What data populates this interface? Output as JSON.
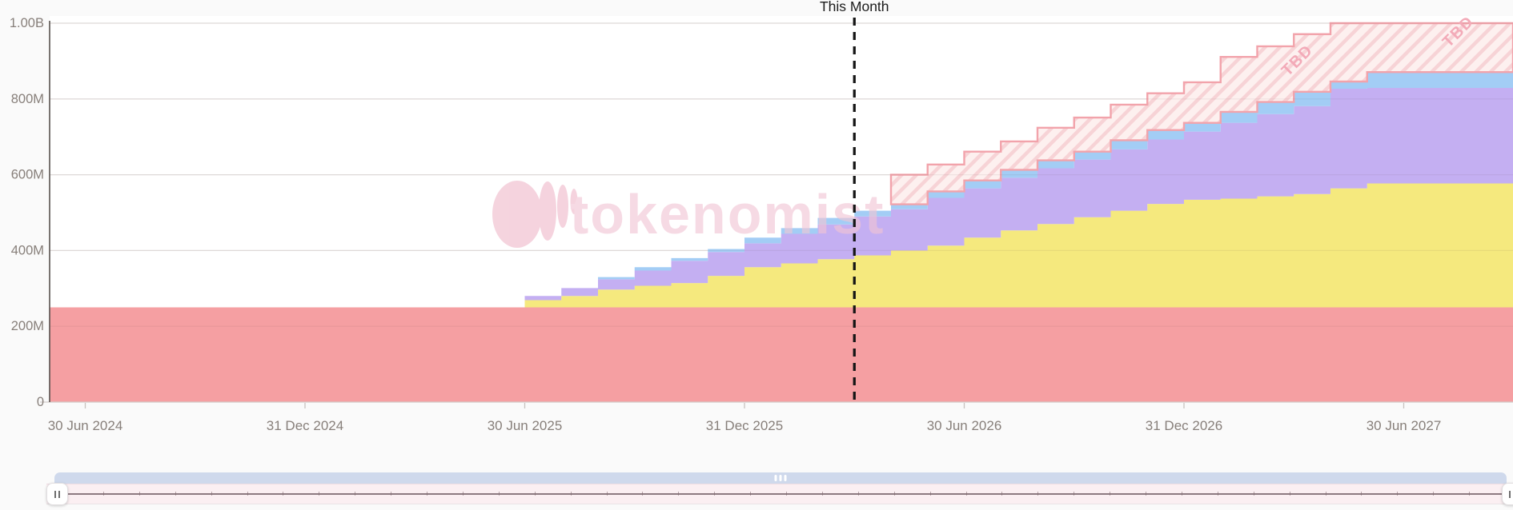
{
  "page": {
    "background": "#fafafa",
    "plot_background": "#ffffff"
  },
  "watermark": {
    "brand": "tokenomist",
    "color": "#f2c5d4"
  },
  "navigator": {
    "thumb_color": "#cfd9ec",
    "track_color": "#fbeff2",
    "baseline_color": "#8d7a81"
  },
  "chart_data": {
    "type": "area",
    "stacked": true,
    "step_interpolation": true,
    "title": "",
    "xlabel": "",
    "ylabel": "",
    "ylim": [
      0,
      1000
    ],
    "value_unit": "millions of tokens",
    "grid": true,
    "legend": false,
    "y_ticks": [
      {
        "value": 0,
        "label": "0"
      },
      {
        "value": 200,
        "label": "200M"
      },
      {
        "value": 400,
        "label": "400M"
      },
      {
        "value": 600,
        "label": "600M"
      },
      {
        "value": 800,
        "label": "800M"
      },
      {
        "value": 1000,
        "label": "1.00B"
      }
    ],
    "x_ticks": [
      {
        "boundary_month_index": 1,
        "label": "30 Jun 2024"
      },
      {
        "boundary_month_index": 7,
        "label": "31 Dec 2024"
      },
      {
        "boundary_month_index": 13,
        "label": "30 Jun 2025"
      },
      {
        "boundary_month_index": 19,
        "label": "31 Dec 2025"
      },
      {
        "boundary_month_index": 25,
        "label": "30 Jun 2026"
      },
      {
        "boundary_month_index": 31,
        "label": "31 Dec 2026"
      },
      {
        "boundary_month_index": 37,
        "label": "30 Jun 2027"
      }
    ],
    "months": [
      "Jun 2024",
      "Jul 2024",
      "Aug 2024",
      "Sep 2024",
      "Oct 2024",
      "Nov 2024",
      "Dec 2024",
      "Jan 2025",
      "Feb 2025",
      "Mar 2025",
      "Apr 2025",
      "May 2025",
      "Jun 2025",
      "Jul 2025",
      "Aug 2025",
      "Sep 2025",
      "Oct 2025",
      "Nov 2025",
      "Dec 2025",
      "Jan 2026",
      "Feb 2026",
      "Mar 2026",
      "Apr 2026",
      "May 2026",
      "Jun 2026",
      "Jul 2026",
      "Aug 2026",
      "Sep 2026",
      "Oct 2026",
      "Nov 2026",
      "Dec 2026",
      "Jan 2027",
      "Feb 2027",
      "Mar 2027",
      "Apr 2027",
      "May 2027",
      "Jun 2027",
      "Jul 2027",
      "Aug 2027",
      "Sep 2027"
    ],
    "series": [
      {
        "name": "red",
        "color": "#f59fa2",
        "values": [
          250,
          250,
          250,
          250,
          250,
          250,
          250,
          250,
          250,
          250,
          250,
          250,
          250,
          250,
          250,
          250,
          250,
          250,
          250,
          250,
          250,
          250,
          250,
          250,
          250,
          250,
          250,
          250,
          250,
          250,
          250,
          250,
          250,
          250,
          250,
          250,
          250,
          250,
          250,
          250
        ]
      },
      {
        "name": "yellow",
        "color": "#f5e97e",
        "values": [
          0,
          0,
          0,
          0,
          0,
          0,
          0,
          0,
          0,
          0,
          0,
          0,
          0,
          19,
          30,
          47,
          57,
          64,
          83,
          106,
          116,
          127,
          137,
          150,
          163,
          184,
          203,
          220,
          238,
          255,
          273,
          284,
          287,
          293,
          299,
          314,
          327,
          327,
          327,
          327
        ]
      },
      {
        "name": "purple",
        "color": "#c4aff2",
        "values": [
          0,
          0,
          0,
          0,
          0,
          0,
          0,
          0,
          0,
          0,
          0,
          0,
          0,
          11,
          21,
          27,
          40,
          59,
          63,
          63,
          78,
          92,
          103,
          109,
          126,
          130,
          139,
          147,
          152,
          162,
          170,
          180,
          200,
          217,
          232,
          263,
          252,
          252,
          252,
          252
        ]
      },
      {
        "name": "blue",
        "color": "#a3cdf5",
        "values": [
          0,
          0,
          0,
          0,
          0,
          0,
          0,
          0,
          0,
          0,
          0,
          0,
          0,
          0,
          0,
          6,
          9,
          7,
          8,
          15,
          15,
          17,
          15,
          13,
          17,
          21,
          21,
          21,
          21,
          24,
          25,
          23,
          29,
          32,
          38,
          19,
          42,
          42,
          42,
          42
        ]
      },
      {
        "name": "tbd",
        "label": "TBD",
        "color": "#fdf0ef",
        "hatch_color": "#f7d3d6",
        "border_color": "#f2a3ab",
        "text_color": "#f3aab8",
        "values": [
          0,
          0,
          0,
          0,
          0,
          0,
          0,
          0,
          0,
          0,
          0,
          0,
          0,
          0,
          0,
          0,
          0,
          0,
          0,
          0,
          0,
          0,
          0,
          78,
          71,
          76,
          75,
          86,
          90,
          94,
          97,
          107,
          145,
          147,
          152,
          154,
          129,
          129,
          129,
          129
        ]
      }
    ],
    "annotations": {
      "this_month": {
        "label": "This Month",
        "boundary_month_index": 22
      }
    }
  }
}
